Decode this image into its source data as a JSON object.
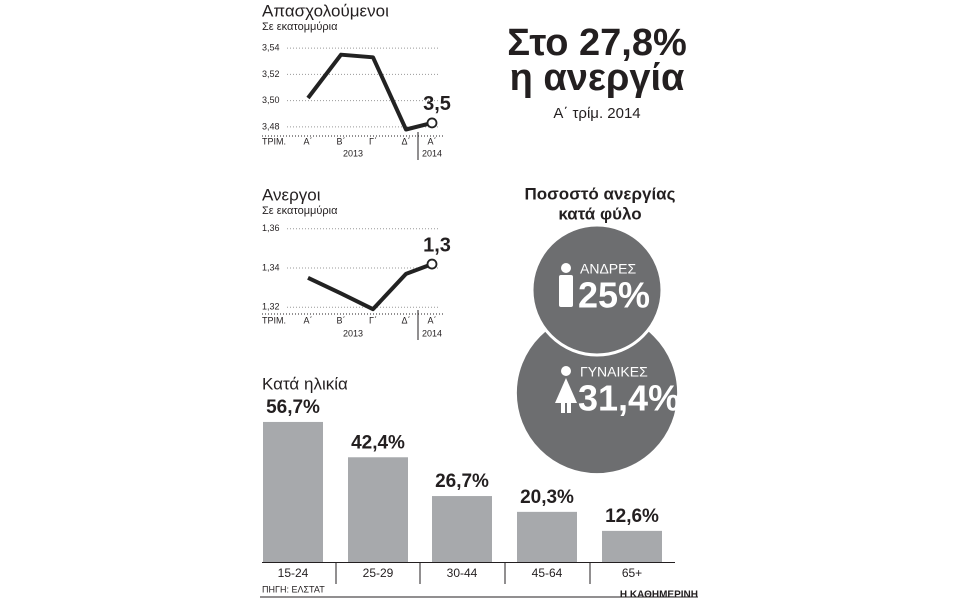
{
  "headline": "Στο 27,8%",
  "headline_2": "η ανεργία",
  "subheadline": "Α΄ τρίμ. 2014",
  "source": "ΠΗΓΗ: ΕΛΣΤΑΤ",
  "publisher": "Η ΚΑΘΗΜΕΡΙΝΗ",
  "chart_data": [
    {
      "type": "line",
      "title": "Απασχολούμενοι",
      "subtitle": "Σε εκατομμύρια",
      "x_label": "ΤΡΙΜ.",
      "categories": [
        "Α΄",
        "Β΄",
        "Γ΄",
        "Δ΄",
        "Α΄"
      ],
      "years": [
        "2013",
        "2014"
      ],
      "values": [
        3.502,
        3.535,
        3.533,
        3.478,
        3.483
      ],
      "value_labels": [
        null,
        null,
        null,
        null,
        "3,5"
      ],
      "color": "#222222",
      "ylim": [
        3.47,
        3.55
      ],
      "yticks": [
        {
          "value": 3.48,
          "label": "3,48"
        },
        {
          "value": 3.5,
          "label": "3,50"
        },
        {
          "value": 3.52,
          "label": "3,52"
        },
        {
          "value": 3.54,
          "label": "3,54"
        }
      ],
      "grid": true
    },
    {
      "type": "line",
      "title": "Ανεργοι",
      "subtitle": "Σε εκατομμύρια",
      "x_label": "ΤΡΙΜ.",
      "categories": [
        "Α΄",
        "Β΄",
        "Γ΄",
        "Δ΄",
        "Α΄"
      ],
      "years": [
        "2013",
        "2014"
      ],
      "values": [
        1.335,
        1.327,
        1.319,
        1.337,
        1.342
      ],
      "value_labels": [
        null,
        null,
        null,
        null,
        "1,3"
      ],
      "color": "#222222",
      "ylim": [
        1.315,
        1.365
      ],
      "yticks": [
        {
          "value": 1.32,
          "label": "1,32"
        },
        {
          "value": 1.34,
          "label": "1,34"
        },
        {
          "value": 1.36,
          "label": "1,36"
        }
      ],
      "grid": true
    },
    {
      "type": "circle",
      "title": [
        "Ποσοστό ανεργίας",
        "κατά φύλο"
      ],
      "categories": [
        "ΑΝΔΡΕΣ",
        "ΓΥΝΑΙΚΕΣ"
      ],
      "values": [
        25,
        31.4
      ],
      "value_labels": [
        "25%",
        "31,4%"
      ],
      "color": "#6d6e70"
    },
    {
      "type": "bar",
      "title": "Κατά ηλικία",
      "categories": [
        "15-24",
        "25-29",
        "30-44",
        "45-64",
        "65+"
      ],
      "values": [
        56.7,
        42.4,
        26.7,
        20.3,
        12.6
      ],
      "value_labels": [
        "56,7%",
        "42,4%",
        "26,7%",
        "20,3%",
        "12,6%"
      ],
      "color": "#a7a9ac"
    }
  ]
}
